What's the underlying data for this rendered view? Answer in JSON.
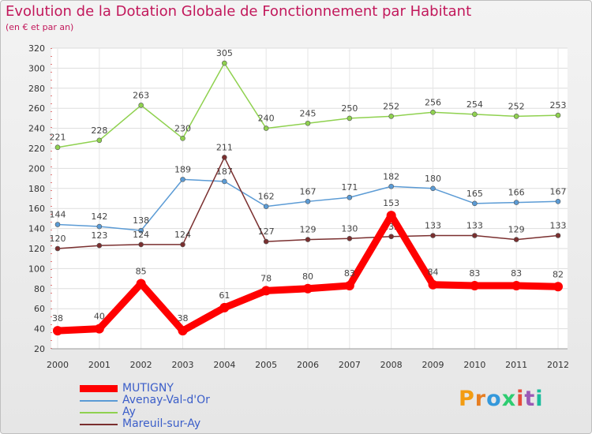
{
  "header": {
    "title": "Evolution de la Dotation Globale de Fonctionnement par Habitant",
    "subtitle": "(en € et par an)"
  },
  "chart_data": {
    "type": "line",
    "title": "Evolution de la Dotation Globale de Fonctionnement par Habitant",
    "subtitle": "(en € et par an)",
    "xlabel": "",
    "ylabel": "",
    "x": [
      "2000",
      "2001",
      "2002",
      "2003",
      "2004",
      "2005",
      "2006",
      "2007",
      "2008",
      "2009",
      "2010",
      "2011",
      "2012"
    ],
    "ylim": [
      20,
      320
    ],
    "yticks": [
      20,
      40,
      60,
      80,
      100,
      120,
      140,
      160,
      180,
      200,
      220,
      240,
      260,
      280,
      300,
      320
    ],
    "grid": true,
    "legend_position": "bottom-left",
    "series": [
      {
        "name": "Ay",
        "color": "#8fd14f",
        "values": [
          221,
          228,
          263,
          230,
          305,
          240,
          245,
          250,
          252,
          256,
          254,
          252,
          253
        ]
      },
      {
        "name": "Avenay-Val-d'Or",
        "color": "#5b9bd5",
        "values": [
          144,
          142,
          138,
          189,
          187,
          162,
          167,
          171,
          182,
          180,
          165,
          166,
          167
        ]
      },
      {
        "name": "Mareuil-sur-Ay",
        "color": "#7a2f2f",
        "values": [
          120,
          123,
          124,
          124,
          211,
          127,
          129,
          130,
          132,
          133,
          133,
          129,
          133
        ]
      },
      {
        "name": "MUTIGNY",
        "color": "#ff0000",
        "values": [
          38,
          40,
          85,
          38,
          61,
          78,
          80,
          83,
          153,
          84,
          83,
          83,
          82
        ]
      }
    ]
  },
  "legend": {
    "items": [
      {
        "label": "MUTIGNY",
        "color": "#ff0000",
        "thick": true
      },
      {
        "label": "Avenay-Val-d'Or",
        "color": "#5b9bd5",
        "thick": false
      },
      {
        "label": "Ay",
        "color": "#8fd14f",
        "thick": false
      },
      {
        "label": "Mareuil-sur-Ay",
        "color": "#7a2f2f",
        "thick": false
      }
    ]
  },
  "logo": {
    "text": "Proxiti",
    "colors": [
      "#f39c12",
      "#e67e22",
      "#3498db",
      "#2ecc71",
      "#e74c3c",
      "#9b59b6",
      "#1abc9c"
    ]
  }
}
